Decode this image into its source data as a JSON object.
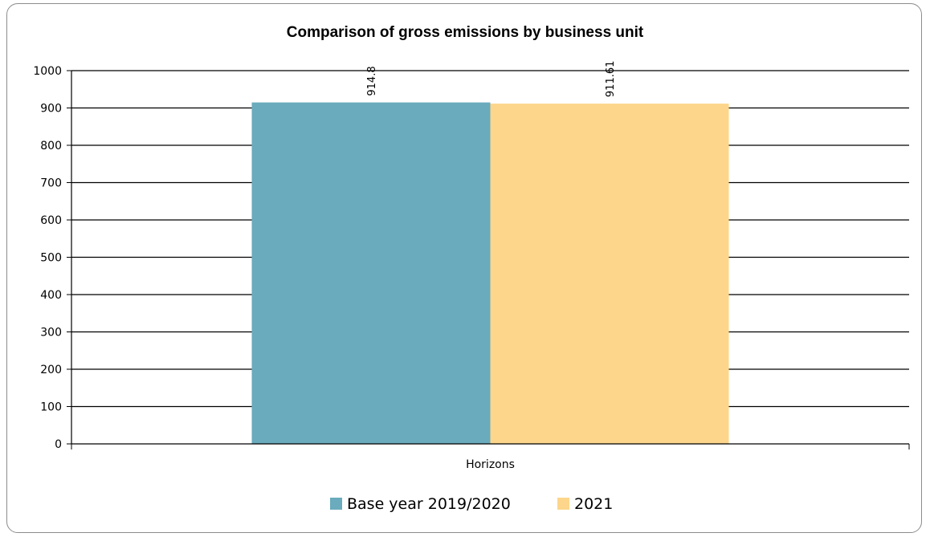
{
  "chart_data": {
    "type": "bar",
    "title": "Comparison of gross emissions by business unit",
    "categories": [
      "Horizons"
    ],
    "series": [
      {
        "name": "Base year 2019/2020",
        "values": [
          914.8
        ],
        "color": "#6aabbd"
      },
      {
        "name": "2021",
        "values": [
          911.61
        ],
        "color": "#fdd68b"
      }
    ],
    "data_labels": [
      "914.8",
      "911.61"
    ],
    "ylim": [
      0,
      1000
    ],
    "yticks": [
      0,
      100,
      200,
      300,
      400,
      500,
      600,
      700,
      800,
      900,
      1000
    ],
    "xlabel": "",
    "ylabel": "",
    "grid": true,
    "legend_position": "bottom"
  }
}
